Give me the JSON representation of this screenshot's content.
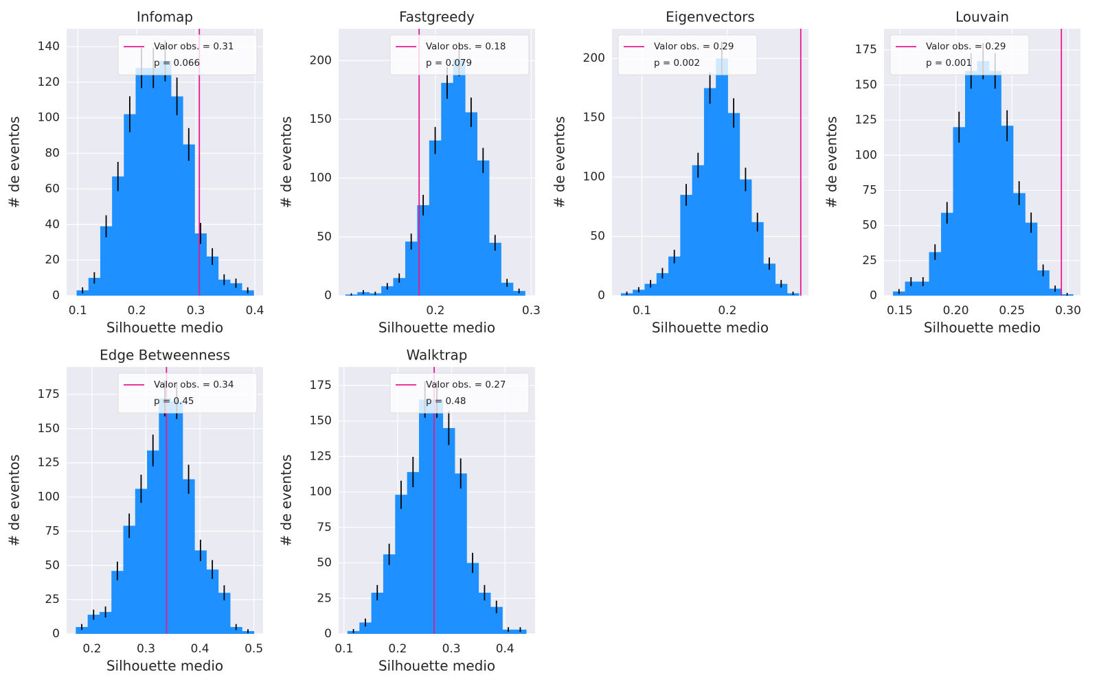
{
  "chart_data": [
    {
      "type": "histogram",
      "title": "Infomap",
      "xlabel": "Silhouette medio",
      "ylabel": "# de eventos",
      "bins": [
        0.098,
        0.118,
        0.138,
        0.158,
        0.178,
        0.198,
        0.218,
        0.238,
        0.258,
        0.278,
        0.298,
        0.318,
        0.338,
        0.358,
        0.378,
        0.398
      ],
      "values": [
        3,
        10,
        39,
        67,
        102,
        128,
        128,
        132,
        112,
        85,
        35,
        22,
        9,
        7,
        3
      ],
      "errors": [
        1.7,
        3.2,
        6.2,
        8.2,
        10.1,
        11.3,
        11.3,
        11.5,
        10.6,
        9.2,
        5.9,
        4.7,
        3,
        2.6,
        1.7
      ],
      "color": "#1e90ff",
      "error_color": "#000000",
      "vline": 0.306,
      "vline_color": "#e8178f",
      "vline_label": "Valor obs. = 0.31",
      "p_label": "p = 0.066",
      "legend_loc": "upper right",
      "xlim": [
        0.081,
        0.414
      ],
      "xticks": [
        0.1,
        0.2,
        0.3,
        0.4
      ],
      "ylim": [
        0,
        150
      ],
      "yticks": [
        0,
        20,
        40,
        60,
        80,
        100,
        120,
        140
      ],
      "grid": true
    },
    {
      "type": "histogram",
      "title": "Fastgreedy",
      "xlabel": "Silhouette medio",
      "ylabel": "# de eventos",
      "bins": [
        0.106,
        0.1185,
        0.131,
        0.1435,
        0.156,
        0.1685,
        0.181,
        0.1935,
        0.206,
        0.2185,
        0.231,
        0.2435,
        0.256,
        0.2685,
        0.281,
        0.2935
      ],
      "values": [
        1,
        3,
        2,
        8,
        15,
        46,
        77,
        132,
        181,
        201,
        156,
        115,
        45,
        11,
        4
      ],
      "errors": [
        1,
        1.7,
        1.4,
        2.8,
        3.9,
        6.8,
        8.8,
        11.5,
        13.5,
        14.2,
        12.5,
        10.7,
        6.7,
        3.3,
        2
      ],
      "color": "#1e90ff",
      "error_color": "#000000",
      "vline": 0.183,
      "vline_color": "#e8178f",
      "vline_label": "Valor obs. = 0.18",
      "p_label": "p = 0.079",
      "legend_loc": "upper right",
      "xlim": [
        0.099,
        0.304
      ],
      "xticks": [
        0.2,
        0.3
      ],
      "ylim": [
        0,
        227
      ],
      "yticks": [
        0,
        50,
        100,
        150,
        200
      ],
      "grid": true
    },
    {
      "type": "histogram",
      "title": "Eigenvectors",
      "xlabel": "Silhouette medio",
      "ylabel": "# de eventos",
      "bins": [
        0.0754,
        0.0893,
        0.1032,
        0.1171,
        0.131,
        0.1449,
        0.1588,
        0.1727,
        0.1866,
        0.2005,
        0.2144,
        0.2283,
        0.2422,
        0.2561,
        0.27,
        0.2839
      ],
      "values": [
        2,
        5,
        10,
        19,
        33,
        85,
        110,
        175,
        200,
        154,
        98,
        62,
        27,
        10,
        2
      ],
      "errors": [
        1.4,
        2.2,
        3.2,
        4.4,
        5.7,
        9.2,
        10.5,
        13.2,
        14.1,
        12.4,
        9.9,
        7.9,
        5.2,
        3.2,
        1.4
      ],
      "color": "#1e90ff",
      "error_color": "#000000",
      "vline": 0.286,
      "vline_color": "#e8178f",
      "vline_label": "Valor obs. = 0.29",
      "p_label": "p = 0.002",
      "legend_loc": "upper left",
      "xlim": [
        0.065,
        0.295
      ],
      "xticks": [
        0.1,
        0.2
      ],
      "ylim": [
        0,
        225
      ],
      "yticks": [
        0,
        50,
        100,
        150,
        200
      ],
      "grid": true
    },
    {
      "type": "histogram",
      "title": "Louvain",
      "xlabel": "Silhouette medio",
      "ylabel": "# de eventos",
      "bins": [
        0.144,
        0.1547,
        0.1654,
        0.1761,
        0.1868,
        0.1975,
        0.2082,
        0.2189,
        0.2296,
        0.2403,
        0.251,
        0.2617,
        0.2724,
        0.2831,
        0.2938,
        0.3045
      ],
      "values": [
        3,
        10,
        10,
        31,
        59,
        120,
        160,
        167,
        160,
        121,
        73,
        52,
        18,
        5,
        1
      ],
      "errors": [
        1.7,
        3.2,
        3.2,
        5.6,
        7.7,
        11,
        12.6,
        12.9,
        12.6,
        11,
        8.5,
        7.2,
        4.2,
        2.2,
        1
      ],
      "color": "#1e90ff",
      "error_color": "#000000",
      "vline": 0.294,
      "vline_color": "#e8178f",
      "vline_label": "Valor obs. = 0.29",
      "p_label": "p = 0.001",
      "legend_loc": "upper left",
      "xlim": [
        0.136,
        0.311
      ],
      "xticks": [
        0.15,
        {
          "value": 0.2,
          "label": "0.20"
        },
        0.25,
        {
          "value": 0.3,
          "label": "0.30"
        }
      ],
      "ylim": [
        0,
        190
      ],
      "yticks": [
        0,
        25,
        50,
        75,
        100,
        125,
        150,
        175
      ],
      "grid": true
    },
    {
      "type": "histogram",
      "title": "Edge Betweenness",
      "xlabel": "Silhouette medio",
      "ylabel": "# de eventos",
      "bins": [
        0.17,
        0.192,
        0.214,
        0.236,
        0.258,
        0.28,
        0.302,
        0.324,
        0.346,
        0.368,
        0.39,
        0.412,
        0.434,
        0.456,
        0.478,
        0.5
      ],
      "values": [
        5,
        14,
        16,
        46,
        79,
        106,
        134,
        172,
        170,
        113,
        61,
        47,
        30,
        5,
        2
      ],
      "errors": [
        2.2,
        3.7,
        4,
        6.8,
        8.9,
        10.3,
        11.6,
        13.1,
        13,
        10.6,
        7.8,
        6.9,
        5.5,
        2.2,
        1.4
      ],
      "color": "#1e90ff",
      "error_color": "#000000",
      "vline": 0.338,
      "vline_color": "#e8178f",
      "vline_label": "Valor obs. = 0.34",
      "p_label": "p = 0.45",
      "legend_loc": "upper right",
      "xlim": [
        0.153,
        0.517
      ],
      "xticks": [
        0.2,
        0.3,
        0.4,
        0.5
      ],
      "ylim": [
        0,
        195
      ],
      "yticks": [
        0,
        25,
        50,
        75,
        100,
        125,
        150,
        175
      ],
      "grid": true
    },
    {
      "type": "histogram",
      "title": "Walktrap",
      "xlabel": "Silhouette medio",
      "ylabel": "# de eventos",
      "bins": [
        0.1065,
        0.1287,
        0.1509,
        0.1731,
        0.1953,
        0.2175,
        0.2397,
        0.2619,
        0.2841,
        0.3063,
        0.3285,
        0.3507,
        0.3729,
        0.3951,
        0.4173,
        0.4395
      ],
      "values": [
        2,
        8,
        29,
        56,
        98,
        114,
        165,
        165,
        145,
        113,
        50,
        29,
        19,
        3,
        3
      ],
      "errors": [
        1.4,
        2.8,
        5.4,
        7.5,
        9.9,
        10.7,
        12.8,
        12.8,
        12,
        10.6,
        7.1,
        5.4,
        4.4,
        1.7,
        1.7
      ],
      "color": "#1e90ff",
      "error_color": "#000000",
      "vline": 0.268,
      "vline_color": "#e8178f",
      "vline_label": "Valor obs. = 0.27",
      "p_label": "p = 0.48",
      "legend_loc": "upper right",
      "xlim": [
        0.09,
        0.456
      ],
      "xticks": [
        0.1,
        0.2,
        0.3,
        0.4
      ],
      "ylim": [
        0,
        188
      ],
      "yticks": [
        0,
        25,
        50,
        75,
        100,
        125,
        150,
        175
      ],
      "grid": true
    }
  ]
}
